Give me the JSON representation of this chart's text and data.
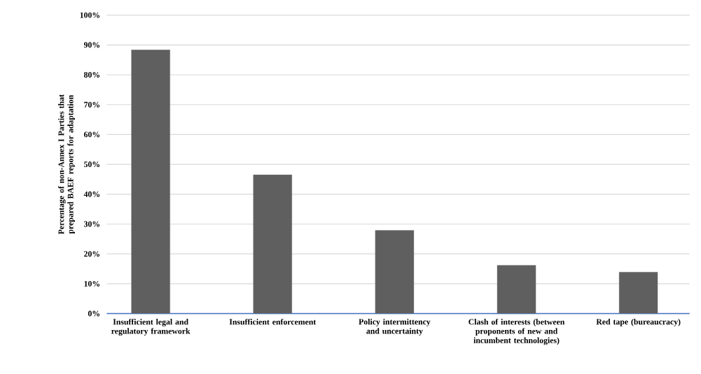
{
  "chart_data": {
    "type": "bar",
    "ylabel": "Percentage of non-Annex I Parties that prepared BAEF reports for adaptation",
    "categories": [
      "Insufficient legal and regulatory framework",
      "Insufficient enforcement",
      "Policy intermittency and uncertainty",
      "Clash of interests (between proponents of new and incumbent technologies)",
      "Red tape (bureaucracy)"
    ],
    "values": [
      88.4,
      46.5,
      27.9,
      16.2,
      13.9
    ],
    "color": "#5f5f5f",
    "ylim": [
      0,
      100
    ],
    "yticks": [
      {
        "value": 0,
        "label": "0%"
      },
      {
        "value": 10,
        "label": "10%"
      },
      {
        "value": 20,
        "label": "20%"
      },
      {
        "value": 30,
        "label": "30%"
      },
      {
        "value": 40,
        "label": "40%"
      },
      {
        "value": 50,
        "label": "50%"
      },
      {
        "value": 60,
        "label": "60%"
      },
      {
        "value": 70,
        "label": "70%"
      },
      {
        "value": 80,
        "label": "80%"
      },
      {
        "value": 90,
        "label": "90%"
      },
      {
        "value": 100,
        "label": "100%"
      }
    ],
    "grid": "y"
  }
}
